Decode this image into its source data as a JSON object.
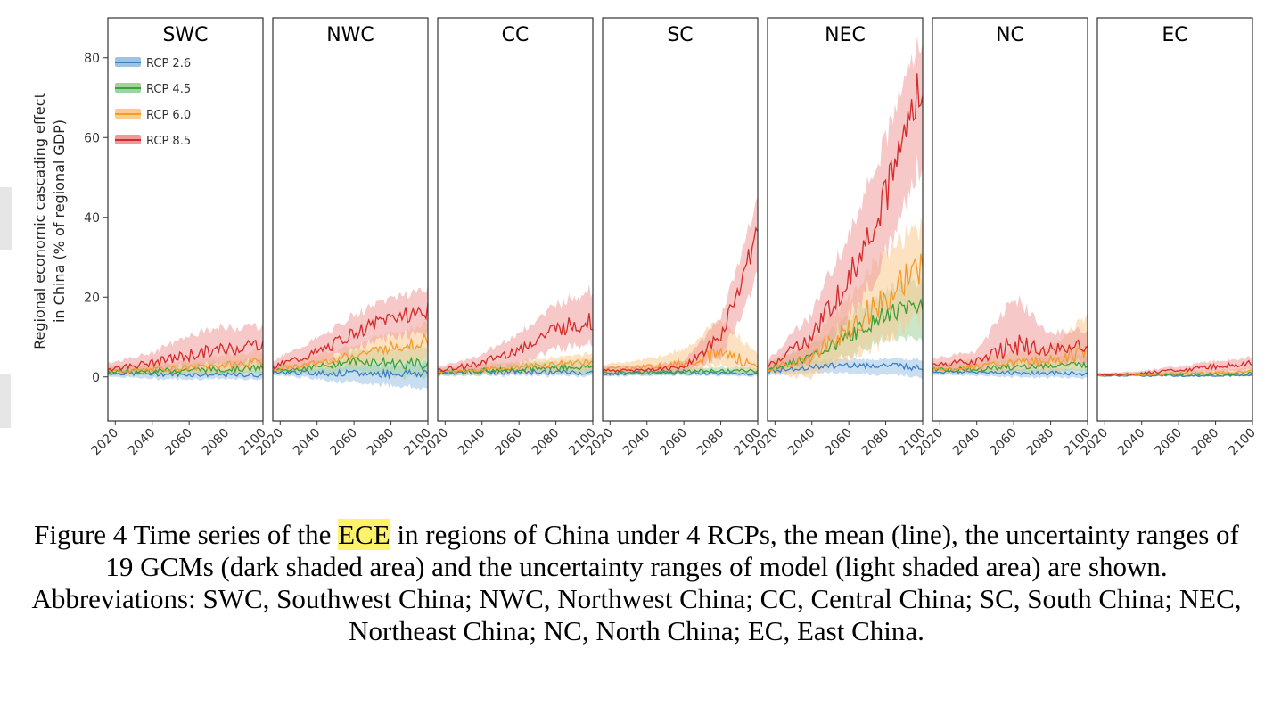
{
  "chart_data": {
    "type": "line",
    "ylabel_line1": "Regional economic cascading effect",
    "ylabel_line2": "in China (% of regional  GDP)",
    "ylim": [
      -11,
      90
    ],
    "yticks": [
      0,
      20,
      40,
      60,
      80
    ],
    "xlim": [
      2016,
      2100
    ],
    "xticks": [
      2020,
      2040,
      2060,
      2080,
      2100
    ],
    "grid": false,
    "legend_position": "top-left",
    "series_styles": [
      {
        "name": "RCP 2.6",
        "color": "#3b7fc4",
        "band": "#9cc3e6"
      },
      {
        "name": "RCP 4.5",
        "color": "#3aa13a",
        "band": "#9ed39e"
      },
      {
        "name": "RCP 6.0",
        "color": "#f59a2b",
        "band": "#fbcb8f"
      },
      {
        "name": "RCP 8.5",
        "color": "#d62a2a",
        "band": "#ee9a9a"
      }
    ],
    "panels": [
      {
        "title": "SWC",
        "series": [
          {
            "name": "RCP 2.6",
            "x": [
              2016,
              2040,
              2060,
              2080,
              2100
            ],
            "y": [
              1.0,
              0.8,
              0.6,
              0.5,
              0.5
            ],
            "lo": [
              0.2,
              -0.5,
              -0.5,
              -0.6,
              -0.5
            ],
            "hi": [
              2.0,
              2.0,
              1.8,
              1.8,
              1.8
            ]
          },
          {
            "name": "RCP 4.5",
            "x": [
              2016,
              2040,
              2060,
              2080,
              2100
            ],
            "y": [
              1.3,
              1.5,
              1.8,
              2.0,
              2.2
            ],
            "lo": [
              0.5,
              0.5,
              0.6,
              0.6,
              0.8
            ],
            "hi": [
              2.5,
              3.0,
              3.5,
              4.0,
              4.5
            ]
          },
          {
            "name": "RCP 6.0",
            "x": [
              2016,
              2040,
              2060,
              2080,
              2100
            ],
            "y": [
              1.5,
              1.8,
              2.3,
              3.0,
              3.8
            ],
            "lo": [
              0.6,
              0.7,
              1.0,
              1.2,
              1.5
            ],
            "hi": [
              2.5,
              3.3,
              4.3,
              5.5,
              6.5
            ]
          },
          {
            "name": "RCP 8.5",
            "x": [
              2016,
              2040,
              2060,
              2080,
              2100
            ],
            "y": [
              2.0,
              3.5,
              5.5,
              7.0,
              8.5
            ],
            "lo": [
              1.0,
              1.5,
              2.5,
              3.0,
              4.0
            ],
            "hi": [
              3.5,
              6.0,
              10.5,
              12.5,
              13.0
            ]
          }
        ]
      },
      {
        "title": "NWC",
        "series": [
          {
            "name": "RCP 2.6",
            "x": [
              2016,
              2040,
              2060,
              2080,
              2100
            ],
            "y": [
              1.2,
              1.0,
              0.8,
              0.9,
              1.0
            ],
            "lo": [
              0.5,
              -0.5,
              -1.5,
              -2.0,
              -3.0
            ],
            "hi": [
              2.0,
              2.5,
              3.0,
              3.0,
              3.5
            ]
          },
          {
            "name": "RCP 4.5",
            "x": [
              2016,
              2040,
              2060,
              2080,
              2100
            ],
            "y": [
              1.5,
              2.5,
              4.0,
              3.5,
              3.0
            ],
            "lo": [
              0.5,
              1.0,
              1.5,
              0.5,
              0.0
            ],
            "hi": [
              2.5,
              4.0,
              6.5,
              7.0,
              7.5
            ]
          },
          {
            "name": "RCP 6.0",
            "x": [
              2016,
              2040,
              2060,
              2080,
              2100
            ],
            "y": [
              1.8,
              3.5,
              5.5,
              7.5,
              9.0
            ],
            "lo": [
              1.0,
              2.0,
              3.0,
              4.0,
              4.5
            ],
            "hi": [
              3.0,
              5.5,
              8.0,
              11.0,
              13.5
            ]
          },
          {
            "name": "RCP 8.5",
            "x": [
              2016,
              2040,
              2060,
              2080,
              2100
            ],
            "y": [
              2.5,
              6.0,
              11.0,
              15.0,
              16.5
            ],
            "lo": [
              1.2,
              3.0,
              7.0,
              10.0,
              11.0
            ],
            "hi": [
              4.0,
              9.5,
              15.5,
              20.0,
              22.0
            ]
          }
        ]
      },
      {
        "title": "CC",
        "series": [
          {
            "name": "RCP 2.6",
            "x": [
              2016,
              2040,
              2060,
              2080,
              2100
            ],
            "y": [
              1.0,
              1.2,
              1.3,
              1.2,
              1.0
            ],
            "lo": [
              0.3,
              0.3,
              0.4,
              0.3,
              0.2
            ],
            "hi": [
              1.8,
              2.5,
              3.5,
              3.0,
              2.5
            ]
          },
          {
            "name": "RCP 4.5",
            "x": [
              2016,
              2040,
              2060,
              2080,
              2100
            ],
            "y": [
              1.2,
              1.6,
              2.0,
              2.3,
              2.5
            ],
            "lo": [
              0.4,
              0.6,
              0.8,
              1.0,
              1.0
            ],
            "hi": [
              2.0,
              2.8,
              3.5,
              4.0,
              4.5
            ]
          },
          {
            "name": "RCP 6.0",
            "x": [
              2016,
              2040,
              2060,
              2080,
              2100
            ],
            "y": [
              1.3,
              1.8,
              2.5,
              3.2,
              4.0
            ],
            "lo": [
              0.5,
              0.7,
              1.0,
              1.3,
              1.8
            ],
            "hi": [
              2.2,
              3.0,
              4.0,
              5.0,
              6.0
            ]
          },
          {
            "name": "RCP 8.5",
            "x": [
              2016,
              2040,
              2060,
              2080,
              2100
            ],
            "y": [
              1.5,
              3.5,
              7.0,
              12.0,
              14.0
            ],
            "lo": [
              0.6,
              1.5,
              3.5,
              7.0,
              9.0
            ],
            "hi": [
              2.5,
              5.5,
              11.0,
              18.0,
              22.0
            ]
          }
        ]
      },
      {
        "title": "SC",
        "series": [
          {
            "name": "RCP 2.6",
            "x": [
              2016,
              2040,
              2060,
              2080,
              2100
            ],
            "y": [
              0.8,
              0.9,
              1.0,
              0.9,
              0.8
            ],
            "lo": [
              0.2,
              0.3,
              0.4,
              0.3,
              0.2
            ],
            "hi": [
              1.5,
              1.6,
              1.8,
              1.6,
              1.5
            ]
          },
          {
            "name": "RCP 4.5",
            "x": [
              2016,
              2040,
              2060,
              2080,
              2100
            ],
            "y": [
              1.0,
              1.2,
              1.4,
              1.5,
              1.5
            ],
            "lo": [
              0.4,
              0.5,
              0.6,
              0.7,
              0.7
            ],
            "hi": [
              1.8,
              2.0,
              2.2,
              2.4,
              2.4
            ]
          },
          {
            "name": "RCP 6.0",
            "x": [
              2016,
              2040,
              2060,
              2080,
              2100
            ],
            "y": [
              2.0,
              2.5,
              3.5,
              6.0,
              3.0
            ],
            "lo": [
              1.0,
              1.5,
              2.0,
              2.5,
              1.5
            ],
            "hi": [
              3.0,
              4.5,
              7.0,
              14.0,
              6.0
            ]
          },
          {
            "name": "RCP 8.5",
            "x": [
              2016,
              2040,
              2060,
              2080,
              2100
            ],
            "y": [
              1.5,
              1.8,
              2.5,
              10.0,
              36.0
            ],
            "lo": [
              0.8,
              1.0,
              1.5,
              5.0,
              25.0
            ],
            "hi": [
              2.5,
              3.0,
              4.0,
              15.0,
              44.0
            ]
          }
        ]
      },
      {
        "title": "NEC",
        "series": [
          {
            "name": "RCP 2.6",
            "x": [
              2016,
              2040,
              2060,
              2080,
              2100
            ],
            "y": [
              1.5,
              2.5,
              3.0,
              2.8,
              2.5
            ],
            "lo": [
              0.5,
              1.0,
              1.0,
              0.5,
              0.0
            ],
            "hi": [
              3.0,
              4.0,
              4.5,
              4.5,
              4.5
            ]
          },
          {
            "name": "RCP 4.5",
            "x": [
              2016,
              2040,
              2060,
              2080,
              2100
            ],
            "y": [
              2.0,
              5.0,
              10.0,
              16.0,
              18.0
            ],
            "lo": [
              1.0,
              2.5,
              5.0,
              10.0,
              9.0
            ],
            "hi": [
              3.5,
              8.0,
              15.0,
              22.0,
              24.0
            ]
          },
          {
            "name": "RCP 6.0",
            "x": [
              2016,
              2040,
              2060,
              2080,
              2100
            ],
            "y": [
              2.0,
              5.0,
              12.0,
              20.0,
              28.0
            ],
            "lo": [
              1.0,
              0.0,
              5.0,
              10.0,
              15.0
            ],
            "hi": [
              3.5,
              9.0,
              20.0,
              32.0,
              38.0
            ]
          },
          {
            "name": "RCP 8.5",
            "x": [
              2016,
              2040,
              2060,
              2080,
              2100
            ],
            "y": [
              2.5,
              10.0,
              25.0,
              45.0,
              75.0
            ],
            "lo": [
              1.0,
              4.0,
              15.0,
              30.0,
              55.0
            ],
            "hi": [
              4.0,
              16.0,
              36.0,
              60.0,
              87.0
            ]
          }
        ]
      },
      {
        "title": "NC",
        "series": [
          {
            "name": "RCP 2.6",
            "x": [
              2016,
              2040,
              2060,
              2080,
              2100
            ],
            "y": [
              1.2,
              1.2,
              1.0,
              0.9,
              0.8
            ],
            "lo": [
              0.5,
              0.3,
              0.0,
              -0.2,
              -0.3
            ],
            "hi": [
              2.0,
              2.0,
              2.0,
              2.0,
              2.0
            ]
          },
          {
            "name": "RCP 4.5",
            "x": [
              2016,
              2040,
              2060,
              2080,
              2100
            ],
            "y": [
              1.8,
              2.0,
              2.5,
              2.8,
              3.0
            ],
            "lo": [
              0.8,
              1.0,
              1.2,
              1.3,
              1.5
            ],
            "hi": [
              3.0,
              3.5,
              4.5,
              5.0,
              5.5
            ]
          },
          {
            "name": "RCP 6.0",
            "x": [
              2016,
              2040,
              2060,
              2080,
              2100
            ],
            "y": [
              2.0,
              2.5,
              3.5,
              4.5,
              6.0
            ],
            "lo": [
              1.0,
              1.2,
              1.5,
              2.0,
              2.5
            ],
            "hi": [
              3.5,
              4.5,
              6.0,
              8.0,
              15.0
            ]
          },
          {
            "name": "RCP 8.5",
            "x": [
              2016,
              2040,
              2060,
              2080,
              2100
            ],
            "y": [
              3.0,
              4.0,
              8.0,
              7.0,
              8.0
            ],
            "lo": [
              1.5,
              2.0,
              3.5,
              3.5,
              4.0
            ],
            "hi": [
              4.5,
              6.5,
              20.0,
              11.0,
              12.0
            ]
          }
        ]
      },
      {
        "title": "EC",
        "series": [
          {
            "name": "RCP 2.6",
            "x": [
              2016,
              2040,
              2060,
              2080,
              2100
            ],
            "y": [
              0.3,
              0.3,
              0.3,
              0.3,
              0.3
            ],
            "lo": [
              0.1,
              0.1,
              0.1,
              0.1,
              0.1
            ],
            "hi": [
              0.6,
              0.6,
              0.6,
              0.6,
              0.6
            ]
          },
          {
            "name": "RCP 4.5",
            "x": [
              2016,
              2040,
              2060,
              2080,
              2100
            ],
            "y": [
              0.4,
              0.5,
              0.6,
              0.7,
              0.8
            ],
            "lo": [
              0.2,
              0.2,
              0.3,
              0.3,
              0.3
            ],
            "hi": [
              0.7,
              0.9,
              1.1,
              1.3,
              1.5
            ]
          },
          {
            "name": "RCP 6.0",
            "x": [
              2016,
              2040,
              2060,
              2080,
              2100
            ],
            "y": [
              0.4,
              0.6,
              0.8,
              1.0,
              1.2
            ],
            "lo": [
              0.2,
              0.3,
              0.4,
              0.5,
              0.6
            ],
            "hi": [
              0.8,
              1.1,
              1.4,
              1.8,
              2.2
            ]
          },
          {
            "name": "RCP 8.5",
            "x": [
              2016,
              2040,
              2060,
              2080,
              2100
            ],
            "y": [
              0.5,
              0.9,
              1.6,
              2.6,
              3.5
            ],
            "lo": [
              0.2,
              0.5,
              0.8,
              1.3,
              1.8
            ],
            "hi": [
              0.9,
              1.5,
              2.6,
              4.0,
              5.0
            ]
          }
        ]
      }
    ]
  },
  "caption": {
    "part1": "Figure 4 Time series of the ",
    "highlight": "ECE",
    "part2": " in regions of China under 4 RCPs, the mean (line), the uncertainty ranges of 19 GCMs (dark shaded area) and the uncertainty ranges of model (light shaded area) are shown. Abbreviations: SWC, Southwest China; NWC, Northwest China; CC, Central China; SC, South China; NEC, Northeast China; NC, North China; EC, East China."
  }
}
